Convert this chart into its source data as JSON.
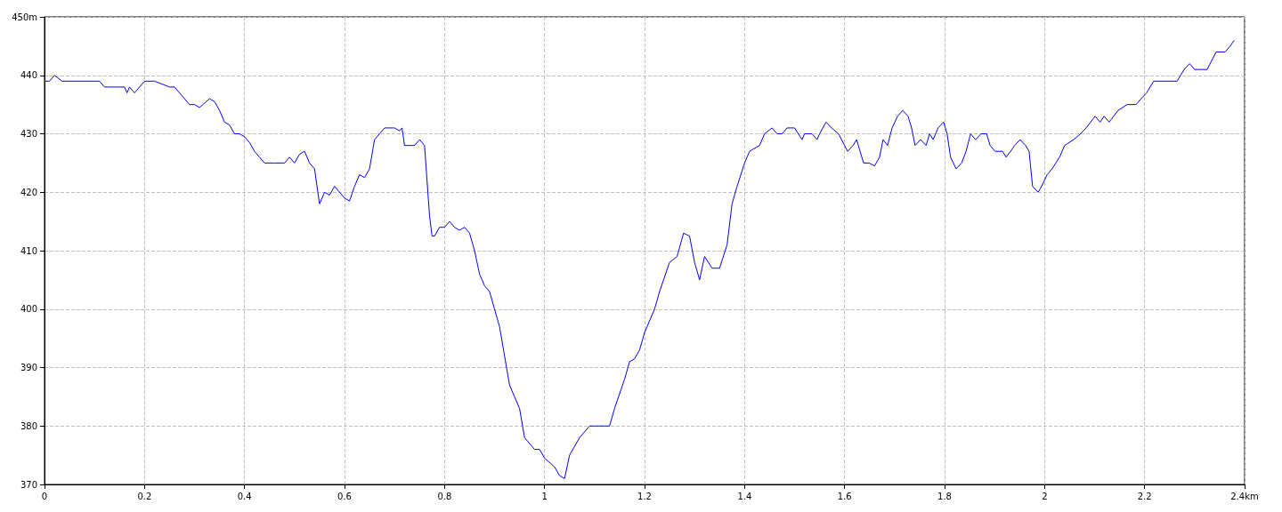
{
  "chart_data": {
    "type": "line",
    "xlim": [
      0,
      2.4
    ],
    "ylim": [
      370,
      450
    ],
    "xticks": [
      0,
      0.2,
      0.4,
      0.6,
      0.8,
      1,
      1.2,
      1.4,
      1.6,
      1.8,
      2,
      2.2,
      {
        "value": 2.4,
        "label": "2.4km"
      }
    ],
    "yticks": [
      370,
      380,
      390,
      400,
      410,
      420,
      430,
      440,
      {
        "value": 450,
        "label": "450m"
      }
    ],
    "grid": true,
    "marker": "none",
    "line_style": "solid",
    "series": [
      {
        "color": "#0000ff",
        "x": [
          0,
          0.01,
          0.02,
          0.035,
          0.11,
          0.12,
          0.16,
          0.165,
          0.17,
          0.18,
          0.2,
          0.22,
          0.25,
          0.26,
          0.28,
          0.29,
          0.3,
          0.31,
          0.33,
          0.34,
          0.35,
          0.36,
          0.37,
          0.38,
          0.39,
          0.4,
          0.41,
          0.42,
          0.43,
          0.44,
          0.46,
          0.48,
          0.49,
          0.5,
          0.51,
          0.52,
          0.53,
          0.54,
          0.55,
          0.56,
          0.57,
          0.58,
          0.6,
          0.61,
          0.62,
          0.63,
          0.64,
          0.65,
          0.66,
          0.67,
          0.68,
          0.7,
          0.71,
          0.715,
          0.72,
          0.74,
          0.75,
          0.76,
          0.77,
          0.775,
          0.78,
          0.79,
          0.8,
          0.81,
          0.82,
          0.83,
          0.84,
          0.85,
          0.86,
          0.87,
          0.88,
          0.89,
          0.9,
          0.91,
          0.92,
          0.93,
          0.94,
          0.95,
          0.96,
          0.97,
          0.98,
          0.99,
          1,
          1.02,
          1.03,
          1.04,
          1.05,
          1.07,
          1.09,
          1.1,
          1.12,
          1.13,
          1.14,
          1.16,
          1.17,
          1.18,
          1.19,
          1.2,
          1.22,
          1.23,
          1.25,
          1.265,
          1.278,
          1.29,
          1.3,
          1.31,
          1.32,
          1.335,
          1.35,
          1.365,
          1.375,
          1.385,
          1.4,
          1.41,
          1.43,
          1.44,
          1.455,
          1.465,
          1.475,
          1.485,
          1.5,
          1.515,
          1.52,
          1.535,
          1.545,
          1.55,
          1.563,
          1.574,
          1.588,
          1.6,
          1.606,
          1.617,
          1.624,
          1.638,
          1.649,
          1.66,
          1.67,
          1.677,
          1.686,
          1.695,
          1.706,
          1.716,
          1.727,
          1.734,
          1.741,
          1.752,
          1.763,
          1.77,
          1.777,
          1.787,
          1.798,
          1.805,
          1.812,
          1.823,
          1.834,
          1.843,
          1.852,
          1.862,
          1.873,
          1.884,
          1.891,
          1.901,
          1.916,
          1.923,
          1.932,
          1.94,
          1.951,
          1.962,
          1.969,
          1.976,
          1.987,
          1.994,
          2.005,
          2.015,
          2.03,
          2.04,
          2.058,
          2.072,
          2.083,
          2.101,
          2.111,
          2.119,
          2.129,
          2.147,
          2.165,
          2.183,
          2.193,
          2.204,
          2.218,
          2.265,
          2.279,
          2.29,
          2.3,
          2.325,
          2.343,
          2.361,
          2.371,
          2.379
        ],
        "values": [
          439,
          439,
          440,
          439,
          439,
          438,
          438,
          437,
          438,
          437,
          439,
          439,
          438,
          438,
          436,
          435,
          435,
          434.5,
          436,
          435.5,
          434,
          432,
          431.5,
          430,
          430,
          429.5,
          428.5,
          427,
          426,
          425,
          425,
          425,
          426,
          425,
          426.5,
          427,
          425,
          424,
          418,
          420,
          419.5,
          421,
          419,
          418.5,
          421,
          423,
          422.5,
          424,
          429,
          430,
          431,
          431,
          430.5,
          431,
          428,
          428,
          429,
          428,
          416,
          412.5,
          412.5,
          414,
          414,
          415,
          414,
          413.5,
          414,
          413,
          410,
          406,
          404,
          403,
          400,
          397,
          392,
          387,
          385,
          383,
          378,
          377,
          376,
          376,
          374.5,
          373,
          371.5,
          371,
          375,
          378,
          380,
          380,
          380,
          380,
          383,
          388,
          391,
          391.5,
          393,
          396,
          400,
          403,
          408,
          409,
          413,
          412.5,
          408,
          405,
          409,
          407,
          407,
          411,
          418,
          421,
          425,
          427,
          428,
          430,
          431,
          430,
          430,
          431,
          431,
          429,
          430,
          430,
          429,
          430,
          432,
          431,
          430,
          428,
          427,
          428,
          429,
          425,
          425,
          424.5,
          426,
          429,
          428,
          431,
          433,
          434,
          433,
          431,
          428,
          429,
          428,
          430,
          429,
          431,
          432,
          430,
          426,
          424,
          425,
          427,
          430,
          429,
          430,
          430,
          428,
          427,
          427,
          426,
          427,
          428,
          429,
          428,
          427,
          421,
          420,
          421,
          423,
          424,
          426,
          428,
          429,
          430,
          431,
          433,
          432,
          433,
          432,
          434,
          435,
          435,
          436,
          437,
          439,
          439,
          441,
          442,
          441,
          441,
          444,
          444,
          445,
          446
        ]
      }
    ]
  }
}
